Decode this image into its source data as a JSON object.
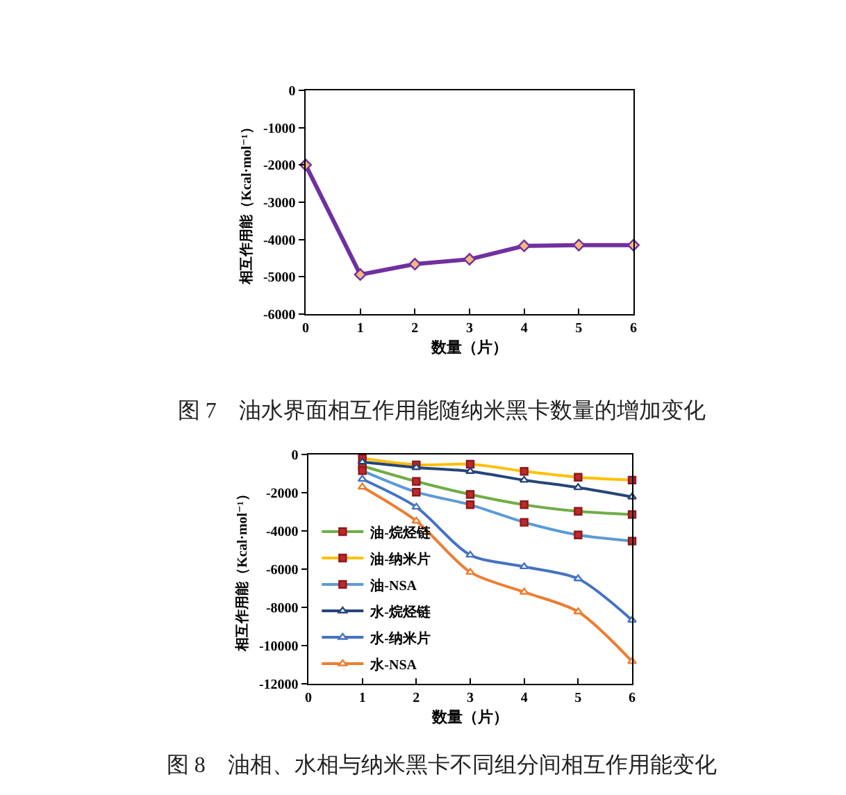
{
  "chart_data": [
    {
      "type": "line",
      "title": "图 7　油水界面相互作用能随纳米黑卡数量的增加变化",
      "xlabel": "数量（片）",
      "ylabel": "相互作用能（Kcal·mol⁻¹）",
      "x": [
        0,
        1,
        2,
        3,
        4,
        5,
        6
      ],
      "xlim": [
        0,
        6
      ],
      "xticks": [
        0,
        1,
        2,
        3,
        4,
        5,
        6
      ],
      "ylim": [
        -6000,
        0
      ],
      "yticks": [
        -6000,
        -5000,
        -4000,
        -3000,
        -2000,
        -1000,
        0
      ],
      "marker": "diamond",
      "series": [
        {
          "color": "#7030a0",
          "values": [
            -2000,
            -4940,
            -4660,
            -4530,
            -4170,
            -4150,
            -4150
          ]
        }
      ]
    },
    {
      "type": "line",
      "title": "图 8　油相、水相与纳米黑卡不同组分间相互作用能变化",
      "xlabel": "数量（片）",
      "ylabel": "相互作用能（Kcal·mol⁻¹）",
      "x": [
        1,
        2,
        3,
        4,
        5,
        6
      ],
      "xlim": [
        0,
        6
      ],
      "xticks": [
        0,
        1,
        2,
        3,
        4,
        5,
        6
      ],
      "ylim": [
        -12000,
        0
      ],
      "yticks": [
        -12000,
        -10000,
        -8000,
        -6000,
        -4000,
        -2000,
        0
      ],
      "legend": "bottom left",
      "series": [
        {
          "name": "油-烷烃链",
          "color": "#70ad47",
          "marker": "square",
          "values": [
            -600,
            -1410,
            -2090,
            -2630,
            -2970,
            -3140
          ]
        },
        {
          "name": "油-纳米片",
          "color": "#ffc000",
          "marker": "square",
          "values": [
            -200,
            -540,
            -510,
            -880,
            -1190,
            -1340
          ]
        },
        {
          "name": "油-NSA",
          "color": "#5b9bd5",
          "marker": "square",
          "values": [
            -850,
            -1970,
            -2630,
            -3550,
            -4210,
            -4530
          ]
        },
        {
          "name": "水-烷烃链",
          "color": "#264478",
          "marker": "triangle",
          "values": [
            -390,
            -680,
            -880,
            -1340,
            -1730,
            -2220
          ]
        },
        {
          "name": "水-纳米片",
          "color": "#4472c4",
          "marker": "triangle",
          "values": [
            -1290,
            -2750,
            -5260,
            -5870,
            -6500,
            -8670
          ]
        },
        {
          "name": "水-NSA",
          "color": "#ed7d31",
          "marker": "triangle",
          "values": [
            -1700,
            -3480,
            -6160,
            -7200,
            -8230,
            -10830
          ]
        }
      ]
    }
  ]
}
